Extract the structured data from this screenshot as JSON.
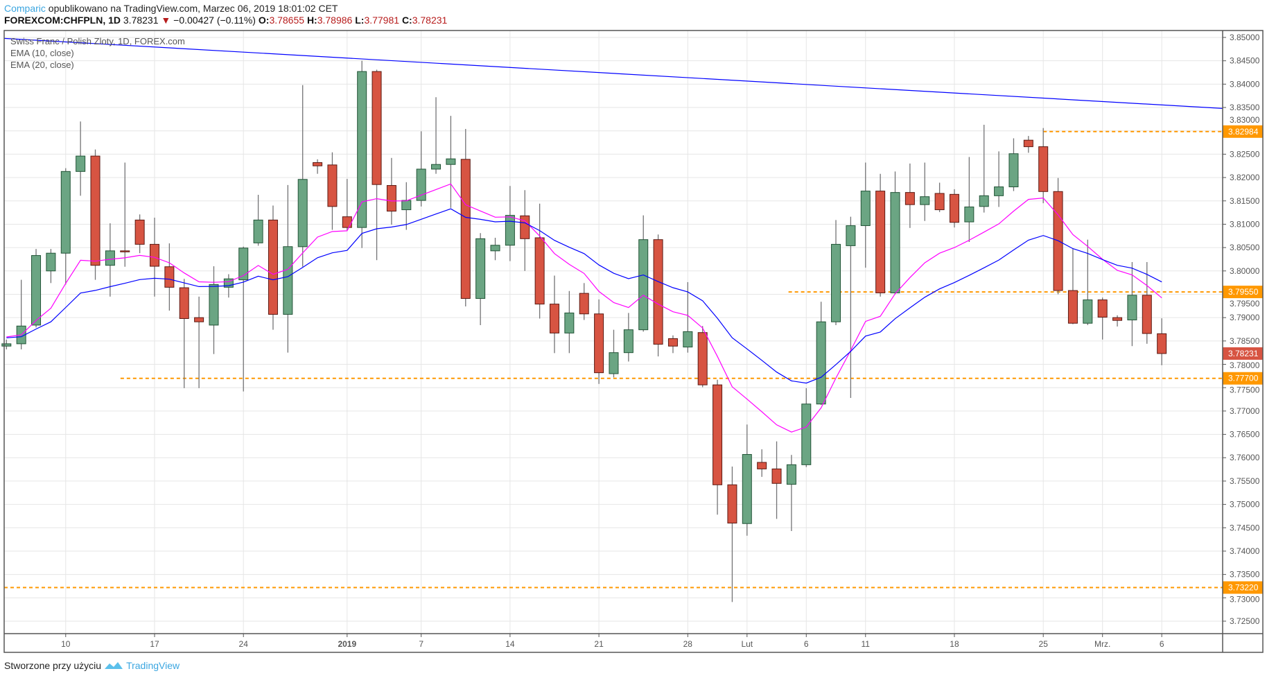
{
  "header": {
    "author": "Comparic",
    "published": "opublikowano na TradingView.com, Marzec 06, 2019 18:01:02 CET",
    "symbol": "FOREXCOM:CHFPLN, 1D",
    "last": "3.78231",
    "change": "−0.00427 (−0.11%)",
    "o_label": "O:",
    "o": "3.78655",
    "h_label": "H:",
    "h": "3.78986",
    "l_label": "L:",
    "l": "3.77981",
    "c_label": "C:",
    "c": "3.78231"
  },
  "legend": {
    "title": "Swiss Franc / Polish Zloty, 1D, FOREX.com",
    "ema1": "EMA (10, close)",
    "ema2": "EMA (20, close)"
  },
  "footer": {
    "text": "Stworzone przy użyciu",
    "brand": "TradingView"
  },
  "chart_data": {
    "type": "candlestick",
    "title": "Swiss Franc / Polish Zloty, 1D, FOREX.com",
    "ylim": [
      3.72,
      3.8515
    ],
    "yticks": [
      "3.85000",
      "3.84500",
      "3.84000",
      "3.83500",
      "3.83000",
      "3.82500",
      "3.82000",
      "3.81500",
      "3.81000",
      "3.80500",
      "3.80000",
      "3.79500",
      "3.79000",
      "3.78500",
      "3.78000",
      "3.77500",
      "3.77000",
      "3.76500",
      "3.76000",
      "3.75500",
      "3.75000",
      "3.74500",
      "3.74000",
      "3.73500",
      "3.73000",
      "3.72500"
    ],
    "xticks": [
      {
        "bar": 4,
        "label": "10"
      },
      {
        "bar": 10,
        "label": "17"
      },
      {
        "bar": 16,
        "label": "24"
      },
      {
        "bar": 23,
        "label": "2019",
        "bold": true
      },
      {
        "bar": 28,
        "label": "7"
      },
      {
        "bar": 34,
        "label": "14"
      },
      {
        "bar": 40,
        "label": "21"
      },
      {
        "bar": 46,
        "label": "28"
      },
      {
        "bar": 50,
        "label": "Lut"
      },
      {
        "bar": 54,
        "label": "6"
      },
      {
        "bar": 58,
        "label": "11"
      },
      {
        "bar": 64,
        "label": "18"
      },
      {
        "bar": 70,
        "label": "25"
      },
      {
        "bar": 74,
        "label": "Mrz."
      },
      {
        "bar": 78,
        "label": "6"
      }
    ],
    "ohlc": [
      [
        3.7839,
        3.7853,
        3.7832,
        3.7844
      ],
      [
        3.7844,
        3.7981,
        3.7832,
        3.7882
      ],
      [
        3.7884,
        3.8047,
        3.7879,
        3.8033
      ],
      [
        3.8,
        3.8047,
        3.7974,
        3.8038
      ],
      [
        3.8038,
        3.822,
        3.7971,
        3.8213
      ],
      [
        3.8213,
        3.832,
        3.8161,
        3.8246
      ],
      [
        3.8246,
        3.826,
        3.7981,
        3.8012
      ],
      [
        3.8012,
        3.8102,
        3.7945,
        3.8043
      ],
      [
        3.8043,
        3.8232,
        3.8009,
        3.8042
      ],
      [
        3.8109,
        3.8121,
        3.8038,
        3.8057
      ],
      [
        3.8057,
        3.8114,
        3.7945,
        3.801
      ],
      [
        3.8009,
        3.8059,
        3.7915,
        3.7965
      ],
      [
        3.7964,
        3.7983,
        3.7749,
        3.7898
      ],
      [
        3.79,
        3.7945,
        3.7749,
        3.7891
      ],
      [
        3.7884,
        3.801,
        3.7822,
        3.7971
      ],
      [
        3.7965,
        3.7993,
        3.7943,
        3.7983
      ],
      [
        3.7981,
        3.8052,
        3.7742,
        3.8049
      ],
      [
        3.806,
        3.8163,
        3.8054,
        3.8109
      ],
      [
        3.8109,
        3.814,
        3.7874,
        3.7907
      ],
      [
        3.7907,
        3.8184,
        3.7825,
        3.8052
      ],
      [
        3.8052,
        3.8398,
        3.8009,
        3.8196
      ],
      [
        3.8232,
        3.8239,
        3.8208,
        3.8225
      ],
      [
        3.8227,
        3.8254,
        3.8088,
        3.8138
      ],
      [
        3.8116,
        3.8197,
        3.8087,
        3.8093
      ],
      [
        3.8093,
        3.845,
        3.8049,
        3.8427
      ],
      [
        3.8427,
        3.8431,
        3.8023,
        3.8185
      ],
      [
        3.8183,
        3.8242,
        3.8099,
        3.8128
      ],
      [
        3.8131,
        3.819,
        3.8088,
        3.8151
      ],
      [
        3.8151,
        3.8299,
        3.8138,
        3.8218
      ],
      [
        3.8218,
        3.8372,
        3.8208,
        3.8228
      ],
      [
        3.8228,
        3.8332,
        3.8135,
        3.824
      ],
      [
        3.8239,
        3.8304,
        3.7924,
        3.7941
      ],
      [
        3.7941,
        3.8081,
        3.7884,
        3.8069
      ],
      [
        3.8043,
        3.8071,
        3.8023,
        3.8055
      ],
      [
        3.8055,
        3.8182,
        3.8021,
        3.8119
      ],
      [
        3.8118,
        3.8173,
        3.8,
        3.8069
      ],
      [
        3.8071,
        3.8144,
        3.7898,
        3.7929
      ],
      [
        3.7929,
        3.799,
        3.7824,
        3.7867
      ],
      [
        3.7867,
        3.7957,
        3.7824,
        3.791
      ],
      [
        3.7952,
        3.7974,
        3.7895,
        3.7908
      ],
      [
        3.7908,
        3.7939,
        3.7758,
        3.7782
      ],
      [
        3.778,
        3.7874,
        3.7772,
        3.7825
      ],
      [
        3.7825,
        3.791,
        3.7806,
        3.7874
      ],
      [
        3.7874,
        3.8119,
        3.787,
        3.8067
      ],
      [
        3.8067,
        3.8078,
        3.7817,
        3.7843
      ],
      [
        3.7855,
        3.7862,
        3.7824,
        3.7839
      ],
      [
        3.7837,
        3.7976,
        3.7825,
        3.787
      ],
      [
        3.7868,
        3.7882,
        3.7751,
        3.7756
      ],
      [
        3.7756,
        3.7767,
        3.7478,
        3.7542
      ],
      [
        3.7542,
        3.7581,
        3.7291,
        3.746
      ],
      [
        3.7459,
        3.7671,
        3.7433,
        3.7607
      ],
      [
        3.759,
        3.7618,
        3.7559,
        3.7576
      ],
      [
        3.7576,
        3.7635,
        3.7469,
        3.7545
      ],
      [
        3.7543,
        3.7606,
        3.7443,
        3.7585
      ],
      [
        3.7585,
        3.7749,
        3.758,
        3.7715
      ],
      [
        3.7715,
        3.7934,
        3.7713,
        3.7891
      ],
      [
        3.7891,
        3.8109,
        3.7884,
        3.8057
      ],
      [
        3.8054,
        3.8116,
        3.7728,
        3.8097
      ],
      [
        3.8097,
        3.8232,
        3.8007,
        3.8171
      ],
      [
        3.8171,
        3.8208,
        3.7945,
        3.7953
      ],
      [
        3.7953,
        3.8213,
        3.795,
        3.8168
      ],
      [
        3.8168,
        3.823,
        3.8092,
        3.8142
      ],
      [
        3.8142,
        3.8232,
        3.8107,
        3.8159
      ],
      [
        3.8166,
        3.8189,
        3.8126,
        3.8131
      ],
      [
        3.8164,
        3.8175,
        3.8093,
        3.8104
      ],
      [
        3.8105,
        3.8244,
        3.8062,
        3.8137
      ],
      [
        3.8138,
        3.8313,
        3.8125,
        3.8161
      ],
      [
        3.8161,
        3.8256,
        3.8137,
        3.818
      ],
      [
        3.818,
        3.8284,
        3.8171,
        3.8251
      ],
      [
        3.828,
        3.8289,
        3.8253,
        3.8266
      ],
      [
        3.8266,
        3.8306,
        3.8145,
        3.817
      ],
      [
        3.817,
        3.8199,
        3.795,
        3.7958
      ],
      [
        3.7958,
        3.8047,
        3.7886,
        3.7888
      ],
      [
        3.7888,
        3.8067,
        3.7884,
        3.7938
      ],
      [
        3.7938,
        3.7943,
        3.7853,
        3.7901
      ],
      [
        3.79,
        3.7905,
        3.7881,
        3.7894
      ],
      [
        3.7895,
        3.8019,
        3.7839,
        3.7948
      ],
      [
        3.7948,
        3.8019,
        3.7844,
        3.7866
      ],
      [
        3.78655,
        3.78986,
        3.77981,
        3.78231
      ]
    ],
    "ema": [
      {
        "name": "EMA (10, close)",
        "period": 10,
        "seed": 3.7862,
        "color": "#ff00ff"
      },
      {
        "name": "EMA (20, close)",
        "period": 20,
        "seed": 3.7858,
        "color": "#0000ff"
      }
    ],
    "trendline": {
      "from": {
        "bar": -0.2,
        "price": 3.8498
      },
      "to": {
        "bar": 82.1,
        "price": 3.8348
      },
      "color": "#0000ff"
    },
    "levels": [
      {
        "price": 3.82984,
        "label": "3.82984",
        "from_bar": 70
      },
      {
        "price": 3.7955,
        "label": "3.79550",
        "from_bar": 52.8
      },
      {
        "price": 3.777,
        "label": "3.77700",
        "from_bar": 7.7
      },
      {
        "price": 3.7322,
        "label": "3.73220",
        "from_bar": -1
      }
    ],
    "last_price_label": "3.78231",
    "colors": {
      "up": "#6ba583",
      "down": "#d75442",
      "up_border": "#225437",
      "down_border": "#5b1a13",
      "wick": "#737375",
      "level": "#ff9800",
      "grid": "#e6e6e6"
    }
  }
}
